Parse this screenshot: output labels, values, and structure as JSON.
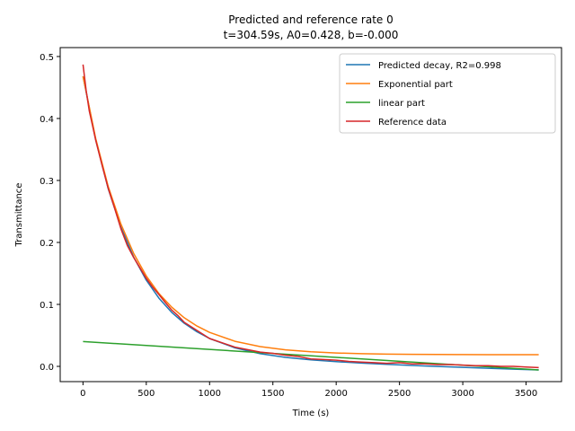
{
  "chart_data": {
    "type": "line",
    "title_line1": "Predicted and reference rate 0",
    "title_line2": "t=304.59s, A0=0.428, b=-0.000",
    "xlabel": "Time (s)",
    "ylabel": "Transmittance",
    "xlim": [
      -180,
      3780
    ],
    "ylim": [
      -0.0246,
      0.5144
    ],
    "xticks": [
      0,
      500,
      1000,
      1500,
      2000,
      2500,
      3000,
      3500
    ],
    "yticks": [
      0.0,
      0.1,
      0.2,
      0.3,
      0.4,
      0.5
    ],
    "ytick_labels": [
      "0.0",
      "0.1",
      "0.2",
      "0.3",
      "0.4",
      "0.5"
    ],
    "legend_position": "top-right",
    "grid": false,
    "series": [
      {
        "name": "Predicted decay, R2=0.998",
        "color": "#1f77b4",
        "x": [
          0,
          100,
          200,
          300,
          400,
          500,
          600,
          700,
          800,
          900,
          1000,
          1200,
          1400,
          1600,
          1800,
          2000,
          2200,
          2400,
          2600,
          2800,
          3000,
          3200,
          3400,
          3600
        ],
        "y": [
          0.468,
          0.3658,
          0.2864,
          0.2246,
          0.1765,
          0.1391,
          0.11,
          0.0873,
          0.0696,
          0.0558,
          0.045,
          0.0299,
          0.0205,
          0.0145,
          0.0104,
          0.0075,
          0.0052,
          0.0032,
          0.0015,
          -0.0001,
          -0.0016,
          -0.003,
          -0.0044,
          -0.0058
        ]
      },
      {
        "name": "Exponential part",
        "color": "#ff7f0e",
        "x": [
          0,
          100,
          200,
          300,
          400,
          500,
          600,
          700,
          800,
          900,
          1000,
          1200,
          1400,
          1600,
          1800,
          2000,
          2200,
          2400,
          2600,
          2800,
          3000,
          3200,
          3400,
          3600
        ],
        "y": [
          0.468,
          0.3678,
          0.29,
          0.2295,
          0.1825,
          0.146,
          0.1176,
          0.0956,
          0.0784,
          0.0651,
          0.0548,
          0.0405,
          0.0319,
          0.0267,
          0.0235,
          0.0216,
          0.0205,
          0.0198,
          0.0194,
          0.0191,
          0.019,
          0.0189,
          0.0188,
          0.0188
        ]
      },
      {
        "name": "linear part",
        "color": "#2ca02c",
        "x": [
          0,
          3600
        ],
        "y": [
          0.04,
          -0.0058
        ]
      },
      {
        "name": "Reference data",
        "color": "#d62728",
        "x": [
          0,
          25,
          50,
          75,
          100,
          150,
          200,
          250,
          300,
          350,
          400,
          450,
          500,
          550,
          600,
          650,
          700,
          750,
          800,
          900,
          1000,
          1100,
          1200,
          1300,
          1400,
          1500,
          1600,
          1700,
          1800,
          1900,
          2000,
          2100,
          2200,
          2300,
          2400,
          2500,
          2600,
          2700,
          2800,
          2900,
          3000,
          3100,
          3200,
          3300,
          3400,
          3500,
          3600
        ],
        "y": [
          0.487,
          0.445,
          0.412,
          0.389,
          0.365,
          0.325,
          0.287,
          0.255,
          0.222,
          0.195,
          0.176,
          0.159,
          0.142,
          0.128,
          0.116,
          0.103,
          0.091,
          0.082,
          0.071,
          0.058,
          0.045,
          0.038,
          0.031,
          0.027,
          0.023,
          0.021,
          0.018,
          0.016,
          0.012,
          0.011,
          0.01,
          0.008,
          0.007,
          0.006,
          0.005,
          0.006,
          0.004,
          0.004,
          0.003,
          0.003,
          0.002,
          0.001,
          0.001,
          0.0,
          0.0,
          -0.001,
          -0.002
        ]
      }
    ]
  }
}
